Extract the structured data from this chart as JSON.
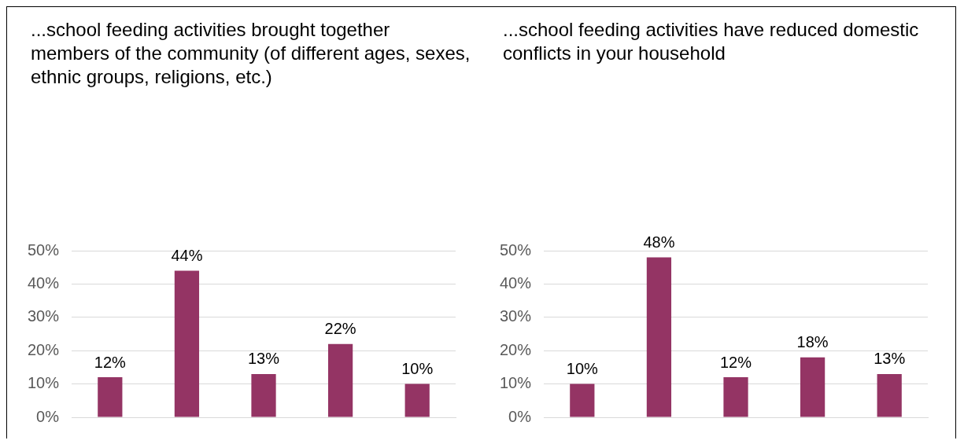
{
  "chart_data": [
    {
      "type": "bar",
      "title": "...school feeding activities brought together members of the community (of different ages, sexes, ethnic groups, religions, etc.)",
      "categories": [
        null,
        null,
        null,
        null,
        null
      ],
      "values": [
        12,
        44,
        13,
        22,
        10
      ],
      "value_labels": [
        "12%",
        "44%",
        "13%",
        "22%",
        "10%"
      ],
      "color": "#943464",
      "ylim": [
        0,
        50
      ],
      "yticks": [
        {
          "value": 0,
          "label": "0%"
        },
        {
          "value": 10,
          "label": "10%"
        },
        {
          "value": 20,
          "label": "20%"
        },
        {
          "value": 30,
          "label": "30%"
        },
        {
          "value": 40,
          "label": "40%"
        },
        {
          "value": 50,
          "label": "50%"
        }
      ],
      "grid": "y",
      "tick_labels": "y"
    },
    {
      "type": "bar",
      "title": "...school feeding activities have reduced domestic conflicts in your household",
      "categories": [
        null,
        null,
        null,
        null,
        null
      ],
      "values": [
        10,
        48,
        12,
        18,
        13
      ],
      "value_labels": [
        "10%",
        "48%",
        "12%",
        "18%",
        "13%"
      ],
      "color": "#943464",
      "ylim": [
        0,
        50
      ],
      "yticks": [
        {
          "value": 0,
          "label": "0%"
        },
        {
          "value": 10,
          "label": "10%"
        },
        {
          "value": 20,
          "label": "20%"
        },
        {
          "value": 30,
          "label": "30%"
        },
        {
          "value": 40,
          "label": "40%"
        },
        {
          "value": 50,
          "label": "50%"
        }
      ],
      "grid": "y",
      "tick_labels": "y"
    }
  ]
}
